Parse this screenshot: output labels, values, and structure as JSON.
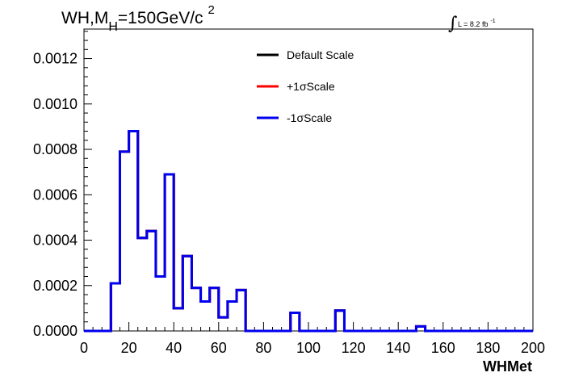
{
  "title": {
    "prefix": "WH,M",
    "subscript": "H",
    "value": "=150GeV/c",
    "superscript": "2"
  },
  "luminosity": {
    "integral_sign": "∫",
    "text": "L = 8.2 fb",
    "superscript": "-1"
  },
  "chart_data": {
    "type": "histogram",
    "xlabel": "WHMet",
    "ylabel": "",
    "xlim": [
      0,
      200
    ],
    "ylim": [
      0,
      0.00133
    ],
    "x_ticks": [
      "0",
      "20",
      "40",
      "60",
      "80",
      "100",
      "120",
      "140",
      "160",
      "180",
      "200"
    ],
    "y_ticks": [
      "0.0000",
      "0.0002",
      "0.0004",
      "0.0006",
      "0.0008",
      "0.0010",
      "0.0012"
    ],
    "bin_width": 4,
    "bin_edges_start": 0,
    "series": [
      {
        "name": "Default Scale",
        "color": "#000000",
        "values": [
          0,
          0,
          0,
          0.00021,
          0.00079,
          0.00088,
          0.00041,
          0.00044,
          0.00024,
          0.00069,
          0.0001,
          0.00033,
          0.00019,
          0.00013,
          0.00019,
          6e-05,
          0.00013,
          0.00018,
          0,
          0,
          0,
          0,
          0,
          8e-05,
          0,
          0,
          0,
          0,
          9e-05,
          0,
          0,
          0,
          0,
          0,
          0,
          0,
          0,
          2e-05,
          0,
          0,
          0,
          0,
          0,
          0,
          0,
          0,
          0,
          0,
          0,
          0
        ]
      },
      {
        "name": "+1σScale",
        "color": "#ff0000",
        "values": [
          0,
          0,
          0,
          0.00021,
          0.00079,
          0.00088,
          0.00041,
          0.00044,
          0.00024,
          0.00069,
          0.0001,
          0.00033,
          0.00019,
          0.00013,
          0.00019,
          6e-05,
          0.00013,
          0.00018,
          0,
          0,
          0,
          0,
          0,
          8e-05,
          0,
          0,
          0,
          0,
          9e-05,
          0,
          0,
          0,
          0,
          0,
          0,
          0,
          0,
          2e-05,
          0,
          0,
          0,
          0,
          0,
          0,
          0,
          0,
          0,
          0,
          0,
          0
        ]
      },
      {
        "name": "-1σScale",
        "color": "#0000ee",
        "values": [
          0,
          0,
          0,
          0.00021,
          0.00079,
          0.00088,
          0.00041,
          0.00044,
          0.00024,
          0.00069,
          0.0001,
          0.00033,
          0.00019,
          0.00013,
          0.00019,
          6e-05,
          0.00013,
          0.00018,
          0,
          0,
          0,
          0,
          0,
          8e-05,
          0,
          0,
          0,
          0,
          9e-05,
          0,
          0,
          0,
          0,
          0,
          0,
          0,
          0,
          2e-05,
          0,
          0,
          0,
          0,
          0,
          0,
          0,
          0,
          0,
          0,
          0,
          0
        ]
      }
    ],
    "legend": {
      "placement": "top-center",
      "entries": [
        "Default Scale",
        "+1σScale",
        "-1σScale"
      ]
    },
    "grid": false
  }
}
